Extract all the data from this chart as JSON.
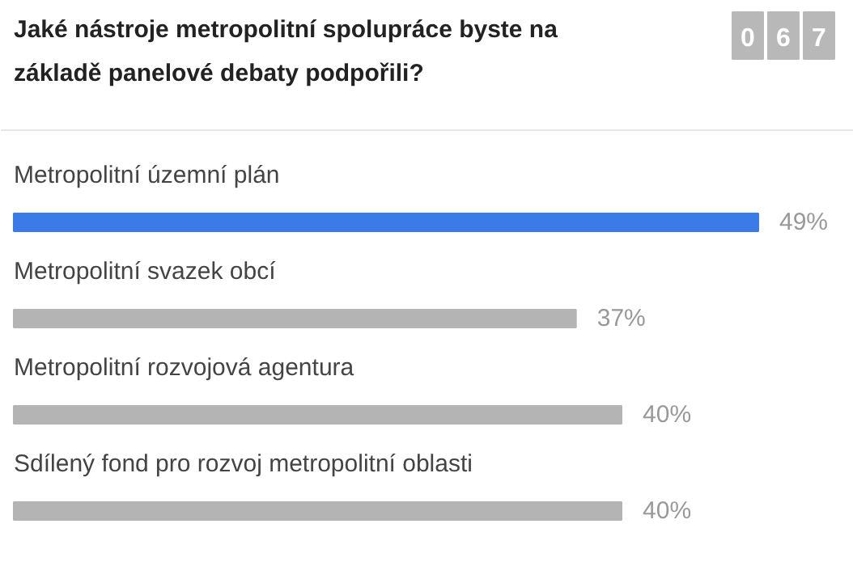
{
  "chart_data": {
    "type": "bar",
    "orientation": "horizontal",
    "title": "Jaké nástroje metropolitní spolupráce byste na základě panelové debaty podpořili?",
    "annotations": [
      "0 6 7"
    ],
    "categories": [
      "Metropolitní územní plán",
      "Metropolitní svazek obcí",
      "Metropolitní rozvojová agentura",
      "Sdílený fond pro rozvoj metropolitní oblasti"
    ],
    "values": [
      49,
      37,
      40,
      40
    ],
    "colors": [
      "#3b7be8",
      "#b4b4b4",
      "#b4b4b4",
      "#b4b4b4"
    ],
    "value_labels": [
      "49%",
      "37%",
      "40%",
      "40%"
    ]
  }
}
